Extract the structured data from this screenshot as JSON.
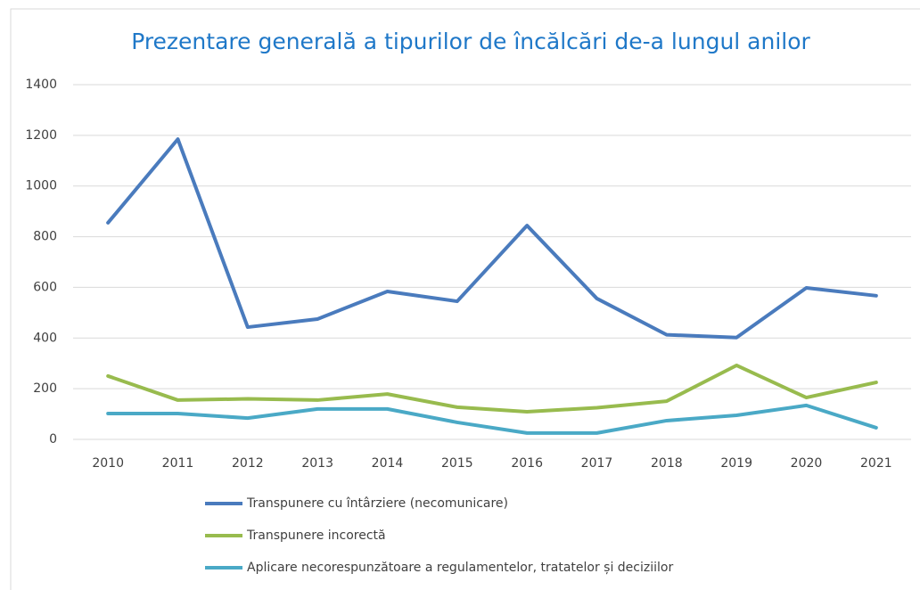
{
  "chart_data": {
    "type": "line",
    "title": "Prezentare generală a tipurilor de încălcări de-a lungul anilor",
    "categories": [
      "2010",
      "2011",
      "2012",
      "2013",
      "2014",
      "2015",
      "2016",
      "2017",
      "2018",
      "2019",
      "2020",
      "2021"
    ],
    "series": [
      {
        "name": "Transpunere cu întârziere (necomunicare)",
        "color": "#4a7bbd",
        "values": [
          855,
          1185,
          443,
          475,
          584,
          545,
          844,
          556,
          413,
          402,
          598,
          567
        ]
      },
      {
        "name": "Transpunere incorectă",
        "color": "#98bb4e",
        "values": [
          250,
          155,
          160,
          155,
          179,
          127,
          109,
          125,
          151,
          292,
          165,
          225
        ]
      },
      {
        "name": "Aplicare necorespunzătoare a regulamentelor, tratatelor și deciziilor",
        "color": "#4aa9c6",
        "values": [
          102,
          102,
          84,
          120,
          120,
          67,
          25,
          25,
          74,
          95,
          134,
          46
        ]
      }
    ],
    "ylim": [
      0,
      1400
    ],
    "yticks": [
      0,
      200,
      400,
      600,
      800,
      1000,
      1200,
      1400
    ],
    "grid": true,
    "legend": "bottom"
  }
}
